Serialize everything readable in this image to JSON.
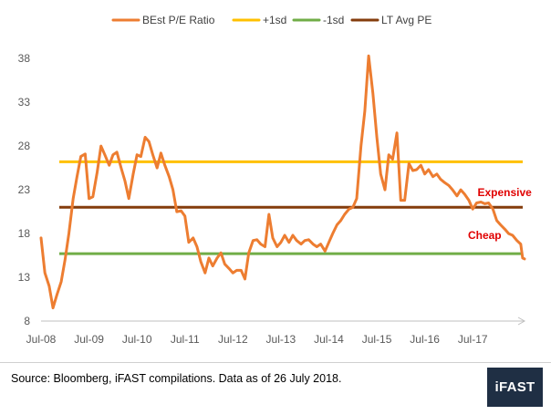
{
  "colors": {
    "pe": "#ED7D31",
    "plus1sd": "#FFC000",
    "minus1sd": "#70AD47",
    "ltavg": "#843C0C",
    "annot": "#E00000",
    "logo_bg": "#1F2F44"
  },
  "footer": {
    "source": "Source: Bloomberg, iFAST compilations. Data as of 26 July 2018.",
    "logo": "iFAST"
  },
  "chart_data": {
    "type": "line",
    "legend_position": "top",
    "grid": false,
    "ylim": [
      8,
      40
    ],
    "yticks": [
      8,
      13,
      18,
      23,
      28,
      33,
      38
    ],
    "xlim": [
      2008.5,
      2018.58
    ],
    "xticks": [
      {
        "x": 2008.5,
        "label": "Jul-08"
      },
      {
        "x": 2009.5,
        "label": "Jul-09"
      },
      {
        "x": 2010.5,
        "label": "Jul-10"
      },
      {
        "x": 2011.5,
        "label": "Jul-11"
      },
      {
        "x": 2012.5,
        "label": "Jul-12"
      },
      {
        "x": 2013.5,
        "label": "Jul-13"
      },
      {
        "x": 2014.5,
        "label": "Jul-14"
      },
      {
        "x": 2015.5,
        "label": "Jul-15"
      },
      {
        "x": 2016.5,
        "label": "Jul-16"
      },
      {
        "x": 2017.5,
        "label": "Jul-17"
      }
    ],
    "series": [
      {
        "name": "BEst P/E Ratio",
        "color": "#ED7D31",
        "points": [
          [
            2008.5,
            17.5
          ],
          [
            2008.58,
            13.5
          ],
          [
            2008.67,
            12.0
          ],
          [
            2008.75,
            9.5
          ],
          [
            2008.83,
            11.0
          ],
          [
            2008.92,
            12.5
          ],
          [
            2009.0,
            15.0
          ],
          [
            2009.08,
            18.0
          ],
          [
            2009.17,
            22.0
          ],
          [
            2009.25,
            24.5
          ],
          [
            2009.33,
            26.8
          ],
          [
            2009.42,
            27.1
          ],
          [
            2009.5,
            22.0
          ],
          [
            2009.58,
            22.2
          ],
          [
            2009.67,
            25.0
          ],
          [
            2009.75,
            28.0
          ],
          [
            2009.83,
            27.0
          ],
          [
            2009.92,
            25.8
          ],
          [
            2010.0,
            27.0
          ],
          [
            2010.08,
            27.3
          ],
          [
            2010.17,
            25.5
          ],
          [
            2010.25,
            24.0
          ],
          [
            2010.33,
            22.0
          ],
          [
            2010.42,
            24.8
          ],
          [
            2010.5,
            27.0
          ],
          [
            2010.58,
            26.8
          ],
          [
            2010.67,
            29.0
          ],
          [
            2010.75,
            28.5
          ],
          [
            2010.83,
            27.0
          ],
          [
            2010.92,
            25.5
          ],
          [
            2011.0,
            27.2
          ],
          [
            2011.08,
            25.8
          ],
          [
            2011.17,
            24.5
          ],
          [
            2011.25,
            23.0
          ],
          [
            2011.33,
            20.5
          ],
          [
            2011.42,
            20.6
          ],
          [
            2011.5,
            20.0
          ],
          [
            2011.58,
            17.0
          ],
          [
            2011.67,
            17.5
          ],
          [
            2011.75,
            16.5
          ],
          [
            2011.83,
            14.8
          ],
          [
            2011.92,
            13.5
          ],
          [
            2012.0,
            15.2
          ],
          [
            2012.08,
            14.3
          ],
          [
            2012.17,
            15.2
          ],
          [
            2012.25,
            15.8
          ],
          [
            2012.33,
            14.5
          ],
          [
            2012.42,
            14.0
          ],
          [
            2012.5,
            13.5
          ],
          [
            2012.58,
            13.8
          ],
          [
            2012.67,
            13.8
          ],
          [
            2012.75,
            12.8
          ],
          [
            2012.83,
            15.8
          ],
          [
            2012.92,
            17.2
          ],
          [
            2013.0,
            17.3
          ],
          [
            2013.08,
            16.8
          ],
          [
            2013.17,
            16.5
          ],
          [
            2013.25,
            20.2
          ],
          [
            2013.33,
            17.5
          ],
          [
            2013.42,
            16.5
          ],
          [
            2013.5,
            17.0
          ],
          [
            2013.58,
            17.8
          ],
          [
            2013.67,
            17.0
          ],
          [
            2013.75,
            17.8
          ],
          [
            2013.83,
            17.2
          ],
          [
            2013.92,
            16.8
          ],
          [
            2014.0,
            17.2
          ],
          [
            2014.08,
            17.3
          ],
          [
            2014.17,
            16.8
          ],
          [
            2014.25,
            16.5
          ],
          [
            2014.33,
            16.8
          ],
          [
            2014.42,
            16.0
          ],
          [
            2014.5,
            17.0
          ],
          [
            2014.58,
            18.0
          ],
          [
            2014.67,
            19.0
          ],
          [
            2014.75,
            19.5
          ],
          [
            2014.83,
            20.2
          ],
          [
            2014.92,
            20.8
          ],
          [
            2015.0,
            21.0
          ],
          [
            2015.08,
            22.0
          ],
          [
            2015.17,
            28.0
          ],
          [
            2015.25,
            32.0
          ],
          [
            2015.33,
            38.3
          ],
          [
            2015.42,
            34.0
          ],
          [
            2015.5,
            29.0
          ],
          [
            2015.58,
            24.8
          ],
          [
            2015.67,
            23.0
          ],
          [
            2015.75,
            27.0
          ],
          [
            2015.83,
            26.5
          ],
          [
            2015.92,
            29.5
          ],
          [
            2016.0,
            21.8
          ],
          [
            2016.08,
            21.8
          ],
          [
            2016.17,
            26.0
          ],
          [
            2016.25,
            25.2
          ],
          [
            2016.33,
            25.3
          ],
          [
            2016.42,
            25.8
          ],
          [
            2016.5,
            24.8
          ],
          [
            2016.58,
            25.3
          ],
          [
            2016.67,
            24.5
          ],
          [
            2016.75,
            24.8
          ],
          [
            2016.83,
            24.2
          ],
          [
            2016.92,
            23.8
          ],
          [
            2017.0,
            23.5
          ],
          [
            2017.08,
            23.0
          ],
          [
            2017.17,
            22.3
          ],
          [
            2017.25,
            23.0
          ],
          [
            2017.33,
            22.5
          ],
          [
            2017.42,
            21.8
          ],
          [
            2017.5,
            20.8
          ],
          [
            2017.58,
            21.5
          ],
          [
            2017.67,
            21.6
          ],
          [
            2017.75,
            21.4
          ],
          [
            2017.83,
            21.5
          ],
          [
            2017.92,
            20.8
          ],
          [
            2018.0,
            19.5
          ],
          [
            2018.08,
            19.0
          ],
          [
            2018.17,
            18.5
          ],
          [
            2018.25,
            18.0
          ],
          [
            2018.33,
            17.8
          ],
          [
            2018.42,
            17.2
          ],
          [
            2018.5,
            16.8
          ],
          [
            2018.54,
            15.2
          ],
          [
            2018.58,
            15.1
          ]
        ]
      },
      {
        "name": "+1sd",
        "color": "#FFC000",
        "constant": 26.2
      },
      {
        "name": "-1sd",
        "color": "#70AD47",
        "constant": 15.7
      },
      {
        "name": "LT Avg PE",
        "color": "#843C0C",
        "constant": 21.0
      }
    ],
    "annotations": [
      {
        "text": "Expensive",
        "x": 2017.6,
        "y": 22.3
      },
      {
        "text": "Cheap",
        "x": 2017.4,
        "y": 17.4
      }
    ]
  }
}
